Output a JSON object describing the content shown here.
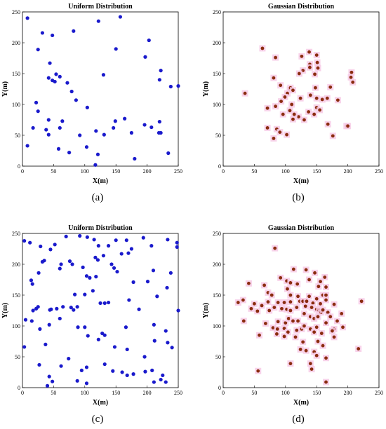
{
  "chart_data": [
    {
      "type": "scatter",
      "panel": "a",
      "caption": "(a)",
      "title": "Uniform Distribution",
      "xlabel": "X(m)",
      "ylabel": "Y(m)",
      "xlim": [
        0,
        250
      ],
      "ylim": [
        0,
        250
      ],
      "xticks": [
        0,
        50,
        100,
        150,
        200,
        250
      ],
      "yticks": [
        0,
        50,
        100,
        150,
        200,
        250
      ],
      "grid": false,
      "marker_color": "#1a1acc",
      "points": [
        [
          8,
          240
        ],
        [
          32,
          216
        ],
        [
          48,
          212
        ],
        [
          82,
          219
        ],
        [
          122,
          235
        ],
        [
          157,
          242
        ],
        [
          25,
          189
        ],
        [
          150,
          190
        ],
        [
          203,
          204
        ],
        [
          197,
          177
        ],
        [
          44,
          167
        ],
        [
          72,
          135
        ],
        [
          79,
          121
        ],
        [
          42,
          143
        ],
        [
          48,
          139
        ],
        [
          52,
          137
        ],
        [
          54,
          149
        ],
        [
          60,
          145
        ],
        [
          130,
          148
        ],
        [
          222,
          155
        ],
        [
          220,
          140
        ],
        [
          238,
          129
        ],
        [
          250,
          130
        ],
        [
          22,
          103
        ],
        [
          25,
          89
        ],
        [
          86,
          107
        ],
        [
          42,
          75
        ],
        [
          64,
          73
        ],
        [
          104,
          95
        ],
        [
          17,
          62
        ],
        [
          38,
          59
        ],
        [
          60,
          62
        ],
        [
          146,
          62
        ],
        [
          164,
          77
        ],
        [
          175,
          54
        ],
        [
          149,
          73
        ],
        [
          196,
          67
        ],
        [
          207,
          63
        ],
        [
          220,
          72
        ],
        [
          222,
          54
        ],
        [
          219,
          54
        ],
        [
          131,
          51
        ],
        [
          92,
          50
        ],
        [
          58,
          28
        ],
        [
          75,
          22
        ],
        [
          103,
          31
        ],
        [
          118,
          57
        ],
        [
          121,
          19
        ],
        [
          180,
          12
        ],
        [
          234,
          21
        ],
        [
          8,
          33
        ],
        [
          117,
          2
        ],
        [
          42,
          51
        ]
      ]
    },
    {
      "type": "scatter",
      "panel": "b",
      "caption": "(b)",
      "title": "Gaussian Distribution",
      "xlabel": "X(m)",
      "ylabel": "Y(m)",
      "xlim": [
        0,
        250
      ],
      "ylim": [
        0,
        250
      ],
      "xticks": [
        0,
        50,
        100,
        150,
        200,
        250
      ],
      "yticks": [
        0,
        50,
        100,
        150,
        200,
        250
      ],
      "grid": false,
      "marker_color": "#8b2c0f",
      "points": [
        [
          63,
          191
        ],
        [
          84,
          176
        ],
        [
          126,
          178
        ],
        [
          138,
          185
        ],
        [
          150,
          180
        ],
        [
          139,
          165
        ],
        [
          139,
          160
        ],
        [
          151,
          168
        ],
        [
          152,
          159
        ],
        [
          147,
          149
        ],
        [
          128,
          155
        ],
        [
          122,
          150
        ],
        [
          206,
          152
        ],
        [
          205,
          144
        ],
        [
          208,
          136
        ],
        [
          35,
          118
        ],
        [
          81,
          143
        ],
        [
          92,
          131
        ],
        [
          107,
          124
        ],
        [
          108,
          127
        ],
        [
          103,
          118
        ],
        [
          99,
          112
        ],
        [
          93,
          105
        ],
        [
          110,
          100
        ],
        [
          124,
          110
        ],
        [
          148,
          127
        ],
        [
          150,
          110
        ],
        [
          159,
          108
        ],
        [
          167,
          110
        ],
        [
          172,
          128
        ],
        [
          140,
          115
        ],
        [
          150,
          95
        ],
        [
          137,
          88
        ],
        [
          184,
          107
        ],
        [
          155,
          91
        ],
        [
          121,
          80
        ],
        [
          107,
          90
        ],
        [
          114,
          84
        ],
        [
          96,
          84
        ],
        [
          112,
          76
        ],
        [
          84,
          97
        ],
        [
          71,
          94
        ],
        [
          71,
          62
        ],
        [
          86,
          60
        ],
        [
          91,
          55
        ],
        [
          102,
          51
        ],
        [
          81,
          45
        ],
        [
          168,
          68
        ],
        [
          176,
          49
        ],
        [
          198,
          65
        ],
        [
          200,
          65
        ],
        [
          130,
          75
        ],
        [
          112,
          123
        ],
        [
          146,
          84
        ]
      ]
    },
    {
      "type": "scatter",
      "panel": "c",
      "caption": "(c)",
      "title": "Uniform Distribution",
      "xlabel": "X(m)",
      "ylabel": "Y(m)",
      "xlim": [
        0,
        250
      ],
      "ylim": [
        0,
        250
      ],
      "xticks": [
        0,
        50,
        100,
        150,
        200,
        250
      ],
      "yticks": [
        0,
        50,
        100,
        150,
        200,
        250
      ],
      "grid": false,
      "marker_color": "#1a1acc",
      "points": [
        [
          3,
          238
        ],
        [
          12,
          235
        ],
        [
          29,
          229
        ],
        [
          45,
          224
        ],
        [
          52,
          232
        ],
        [
          70,
          245
        ],
        [
          92,
          246
        ],
        [
          104,
          244
        ],
        [
          115,
          240
        ],
        [
          122,
          230
        ],
        [
          138,
          230
        ],
        [
          150,
          239
        ],
        [
          167,
          239
        ],
        [
          175,
          225
        ],
        [
          194,
          243
        ],
        [
          207,
          230
        ],
        [
          233,
          240
        ],
        [
          248,
          235
        ],
        [
          248,
          228
        ],
        [
          32,
          204
        ],
        [
          35,
          206
        ],
        [
          76,
          205
        ],
        [
          80,
          200
        ],
        [
          97,
          195
        ],
        [
          117,
          211
        ],
        [
          121,
          207
        ],
        [
          130,
          214
        ],
        [
          143,
          200
        ],
        [
          159,
          217
        ],
        [
          170,
          218
        ],
        [
          210,
          190
        ],
        [
          238,
          186
        ],
        [
          14,
          174
        ],
        [
          16,
          168
        ],
        [
          26,
          186
        ],
        [
          60,
          193
        ],
        [
          62,
          200
        ],
        [
          108,
          178
        ],
        [
          103,
          181
        ],
        [
          118,
          180
        ],
        [
          147,
          194
        ],
        [
          152,
          188
        ],
        [
          178,
          171
        ],
        [
          22,
          128
        ],
        [
          25,
          131
        ],
        [
          17,
          125
        ],
        [
          46,
          127
        ],
        [
          55,
          128
        ],
        [
          65,
          131
        ],
        [
          78,
          130
        ],
        [
          84,
          151
        ],
        [
          82,
          126
        ],
        [
          88,
          131
        ],
        [
          100,
          151
        ],
        [
          113,
          157
        ],
        [
          125,
          137
        ],
        [
          132,
          137
        ],
        [
          138,
          138
        ],
        [
          171,
          142
        ],
        [
          201,
          172
        ],
        [
          216,
          148
        ],
        [
          232,
          162
        ],
        [
          5,
          110
        ],
        [
          15,
          108
        ],
        [
          43,
          102
        ],
        [
          60,
          112
        ],
        [
          28,
          95
        ],
        [
          44,
          126
        ],
        [
          89,
          98
        ],
        [
          100,
          98
        ],
        [
          122,
          78
        ],
        [
          128,
          88
        ],
        [
          132,
          85
        ],
        [
          166,
          98
        ],
        [
          187,
          127
        ],
        [
          211,
          102
        ],
        [
          212,
          76
        ],
        [
          230,
          92
        ],
        [
          233,
          73
        ],
        [
          250,
          125
        ],
        [
          37,
          70
        ],
        [
          105,
          84
        ],
        [
          148,
          66
        ],
        [
          168,
          62
        ],
        [
          196,
          50
        ],
        [
          208,
          28
        ],
        [
          240,
          65
        ],
        [
          27,
          37
        ],
        [
          43,
          18
        ],
        [
          62,
          35
        ],
        [
          74,
          47
        ],
        [
          95,
          28
        ],
        [
          103,
          33
        ],
        [
          132,
          38
        ],
        [
          145,
          27
        ],
        [
          160,
          25
        ],
        [
          168,
          20
        ],
        [
          178,
          22
        ],
        [
          197,
          26
        ],
        [
          225,
          20
        ],
        [
          230,
          9
        ],
        [
          3,
          66
        ],
        [
          48,
          10
        ],
        [
          40,
          3
        ],
        [
          88,
          11
        ],
        [
          103,
          7
        ],
        [
          211,
          9
        ],
        [
          222,
          13
        ]
      ]
    },
    {
      "type": "scatter",
      "panel": "d",
      "caption": "(d)",
      "title": "Gaussian Distribution",
      "xlabel": "X(m)",
      "ylabel": "Y(m)",
      "xlim": [
        0,
        250
      ],
      "ylim": [
        0,
        250
      ],
      "xticks": [
        0,
        50,
        100,
        150,
        200,
        250
      ],
      "yticks": [
        0,
        50,
        100,
        150,
        200,
        250
      ],
      "grid": false,
      "marker_color": "#8b2c0f",
      "points": [
        [
          83,
          226
        ],
        [
          113,
          192
        ],
        [
          133,
          191
        ],
        [
          147,
          186
        ],
        [
          138,
          175
        ],
        [
          163,
          179
        ],
        [
          156,
          172
        ],
        [
          41,
          169
        ],
        [
          66,
          166
        ],
        [
          92,
          178
        ],
        [
          102,
          173
        ],
        [
          108,
          170
        ],
        [
          103,
          160
        ],
        [
          119,
          168
        ],
        [
          153,
          164
        ],
        [
          165,
          163
        ],
        [
          72,
          154
        ],
        [
          78,
          150
        ],
        [
          108,
          150
        ],
        [
          120,
          148
        ],
        [
          138,
          148
        ],
        [
          150,
          144
        ],
        [
          160,
          150
        ],
        [
          165,
          150
        ],
        [
          24,
          138
        ],
        [
          32,
          142
        ],
        [
          50,
          136
        ],
        [
          72,
          139
        ],
        [
          88,
          138
        ],
        [
          98,
          138
        ],
        [
          108,
          139
        ],
        [
          123,
          140
        ],
        [
          128,
          140
        ],
        [
          134,
          140
        ],
        [
          144,
          137
        ],
        [
          156,
          136
        ],
        [
          165,
          142
        ],
        [
          178,
          135
        ],
        [
          222,
          140
        ],
        [
          45,
          128
        ],
        [
          55,
          124
        ],
        [
          62,
          133
        ],
        [
          74,
          125
        ],
        [
          82,
          130
        ],
        [
          94,
          128
        ],
        [
          102,
          127
        ],
        [
          108,
          125
        ],
        [
          118,
          130
        ],
        [
          132,
          132
        ],
        [
          142,
          130
        ],
        [
          150,
          127
        ],
        [
          154,
          125
        ],
        [
          157,
          122
        ],
        [
          160,
          126
        ],
        [
          168,
          122
        ],
        [
          190,
          120
        ],
        [
          33,
          108
        ],
        [
          68,
          104
        ],
        [
          88,
          107
        ],
        [
          100,
          105
        ],
        [
          105,
          112
        ],
        [
          112,
          108
        ],
        [
          120,
          108
        ],
        [
          130,
          120
        ],
        [
          140,
          115
        ],
        [
          146,
          112
        ],
        [
          152,
          115
        ],
        [
          172,
          115
        ],
        [
          183,
          108
        ],
        [
          192,
          98
        ],
        [
          80,
          97
        ],
        [
          87,
          95
        ],
        [
          98,
          96
        ],
        [
          104,
          90
        ],
        [
          118,
          93
        ],
        [
          126,
          95
        ],
        [
          140,
          95
        ],
        [
          150,
          98
        ],
        [
          158,
          88
        ],
        [
          165,
          105
        ],
        [
          178,
          95
        ],
        [
          58,
          85
        ],
        [
          86,
          87
        ],
        [
          98,
          83
        ],
        [
          116,
          82
        ],
        [
          128,
          74
        ],
        [
          146,
          90
        ],
        [
          152,
          75
        ],
        [
          160,
          68
        ],
        [
          175,
          92
        ],
        [
          178,
          82
        ],
        [
          124,
          62
        ],
        [
          133,
          60
        ],
        [
          146,
          58
        ],
        [
          150,
          52
        ],
        [
          165,
          48
        ],
        [
          217,
          63
        ],
        [
          108,
          39
        ],
        [
          140,
          39
        ],
        [
          142,
          30
        ],
        [
          56,
          27
        ],
        [
          165,
          9
        ],
        [
          130,
          100
        ]
      ]
    }
  ]
}
